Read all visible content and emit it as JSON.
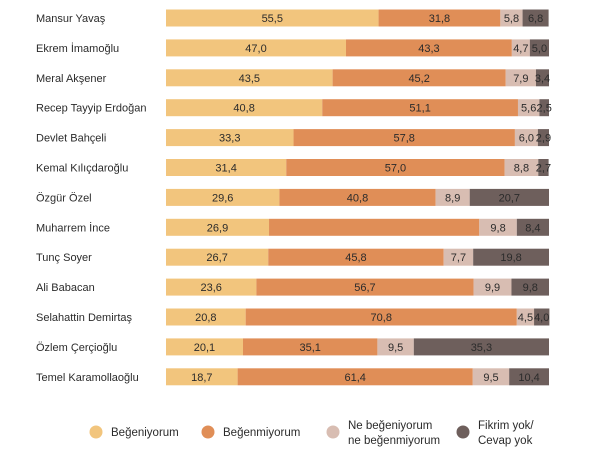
{
  "chart_data": {
    "type": "bar",
    "orientation": "horizontal",
    "stacked": true,
    "normalized_percent": true,
    "categories": [
      "Mansur Yavaş",
      "Ekrem İmamoğlu",
      "Meral Akşener",
      "Recep Tayyip Erdoğan",
      "Devlet Bahçeli",
      "Kemal Kılıçdaroğlu",
      "Özgür Özel",
      "Muharrem İnce",
      "Tunç Soyer",
      "Ali Babacan",
      "Selahattin Demirtaş",
      "Özlem Çerçioğlu",
      "Temel Karamollaoğlu"
    ],
    "series": [
      {
        "name": "Beğeniyorum",
        "color": "#F2C57D",
        "values": [
          55.5,
          47.0,
          43.5,
          40.8,
          33.3,
          31.4,
          29.6,
          26.9,
          26.7,
          23.6,
          20.8,
          20.1,
          18.7
        ],
        "labels": [
          "55,5",
          "47,0",
          "43,5",
          "40,8",
          "33,3",
          "31,4",
          "29,6",
          "26,9",
          "26,7",
          "23,6",
          "20,8",
          "20,1",
          "18,7"
        ]
      },
      {
        "name": "Beğenmiyorum",
        "color": "#E08E57",
        "values": [
          31.8,
          43.3,
          45.2,
          51.1,
          57.8,
          57.0,
          40.8,
          54.9,
          45.8,
          56.7,
          70.8,
          35.1,
          61.4
        ],
        "labels": [
          "31,8",
          "43,3",
          "45,2",
          "51,1",
          "57,8",
          "57,0",
          "40,8",
          "",
          "45,8",
          "56,7",
          "70,8",
          "35,1",
          "61,4"
        ]
      },
      {
        "name": "Ne beğeniyorum ne beğenmiyorum",
        "color": "#D8BDB2",
        "values": [
          5.8,
          4.7,
          7.9,
          5.6,
          6.0,
          8.8,
          8.9,
          9.8,
          7.7,
          9.9,
          4.5,
          9.5,
          9.5
        ],
        "labels": [
          "5,8",
          "4,7",
          "7,9",
          "5,6",
          "6,0",
          "8,8",
          "8,9",
          "9,8",
          "7,7",
          "9,9",
          "4,5",
          "9,5",
          "9,5"
        ]
      },
      {
        "name": "Fikrim yok/ Cevap yok",
        "color": "#6E5F5C",
        "values": [
          6.8,
          5.0,
          3.4,
          2.5,
          2.9,
          2.7,
          20.7,
          8.4,
          19.8,
          9.8,
          4.0,
          35.3,
          10.4
        ],
        "labels": [
          "6,8",
          "5,0",
          "3,4",
          "2,5",
          "2,9",
          "2,7",
          "20,7",
          "8,4",
          "19,8",
          "9,8",
          "4,0",
          "35,3",
          "10,4"
        ]
      }
    ],
    "legend": {
      "position": "bottom",
      "entries": [
        {
          "lines": [
            "Beğeniyorum"
          ]
        },
        {
          "lines": [
            "Beğenmiyorum"
          ]
        },
        {
          "lines": [
            "Ne beğeniyorum",
            "ne beğenmiyorum"
          ]
        },
        {
          "lines": [
            "Fikrim yok/",
            "Cevap yok"
          ]
        }
      ]
    },
    "xlim": [
      0,
      100
    ],
    "title": "",
    "xlabel": "",
    "ylabel": ""
  }
}
